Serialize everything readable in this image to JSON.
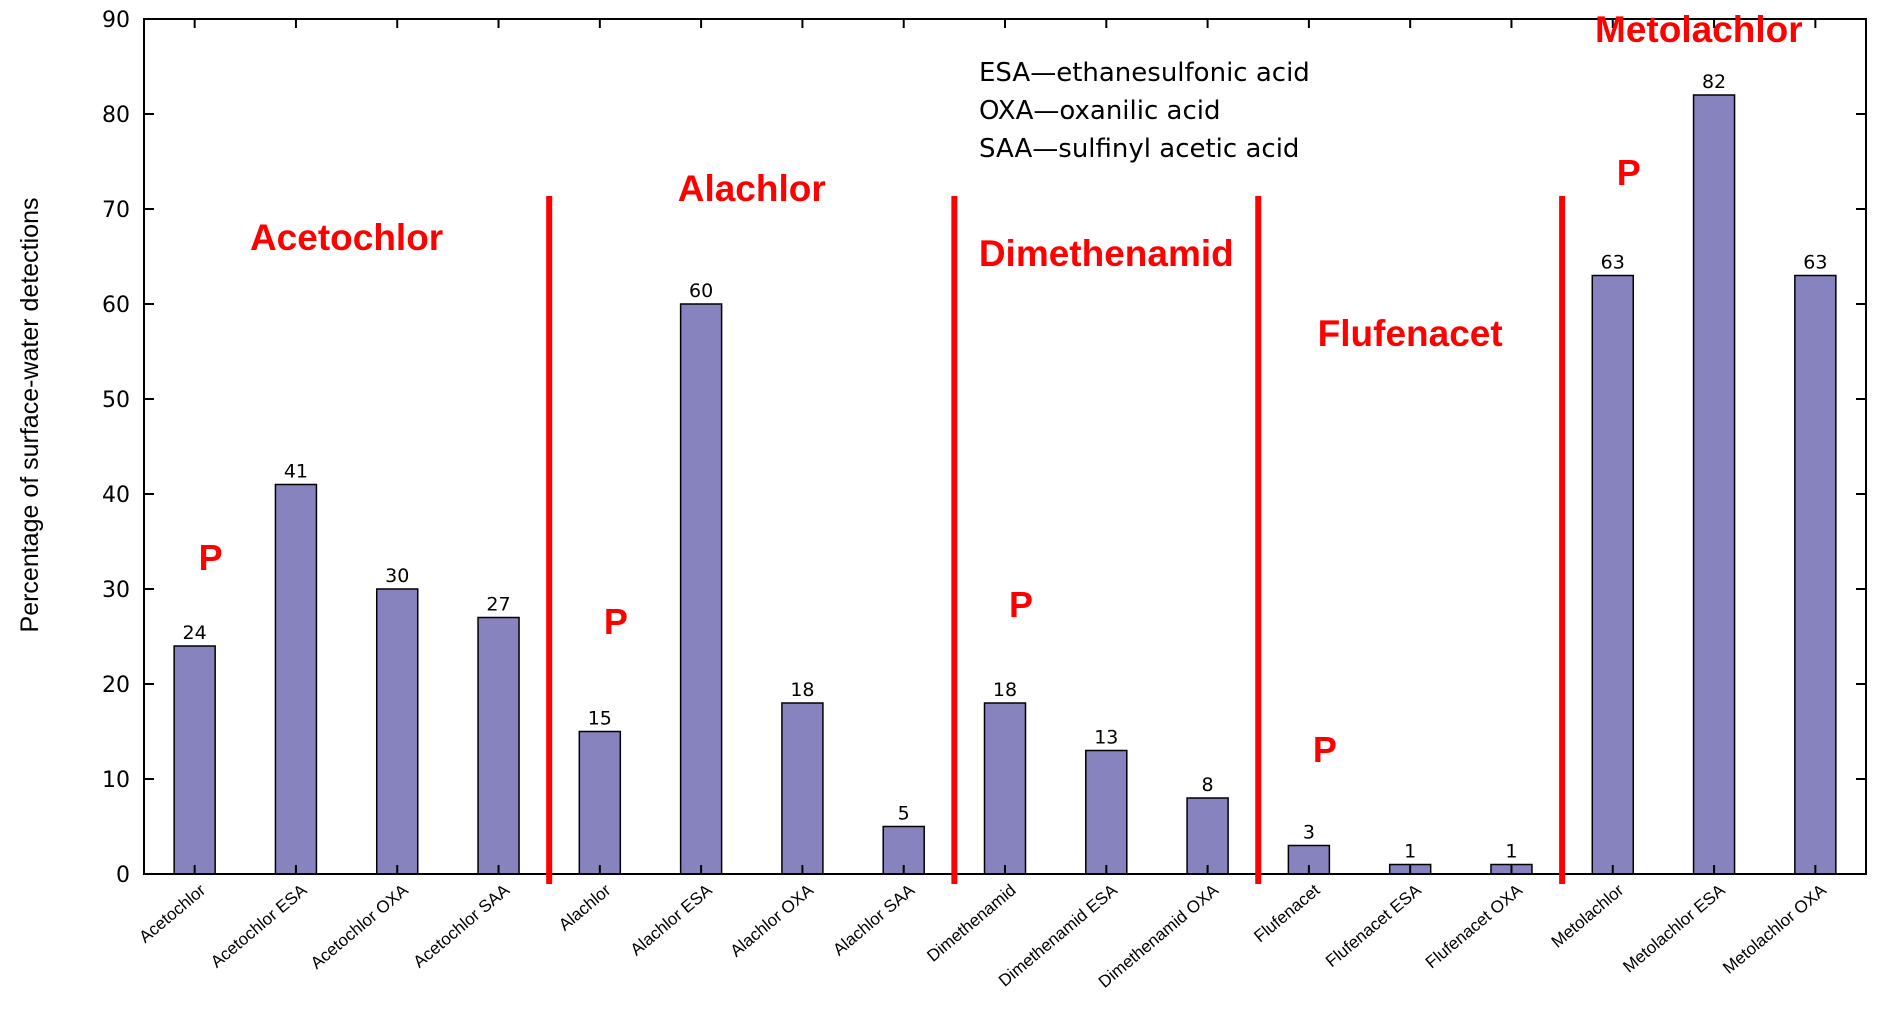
{
  "chart_data": {
    "type": "bar",
    "ylabel": "Percentage of surface-water detections",
    "xlabel": "",
    "ylim": [
      0,
      90
    ],
    "yticks": [
      0,
      10,
      20,
      30,
      40,
      50,
      60,
      70,
      80,
      90
    ],
    "grid": false,
    "categories": [
      "Acetochlor",
      "Acetochlor ESA",
      "Acetochlor OXA",
      "Acetochlor SAA",
      "Alachlor",
      "Alachlor ESA",
      "Alachlor OXA",
      "Alachlor SAA",
      "Dimethenamid",
      "Dimethenamid ESA",
      "Dimethenamid OXA",
      "Flufenacet",
      "Flufenacet ESA",
      "Flufenacet OXA",
      "Metolachlor",
      "Metolachlor ESA",
      "Metolachlor OXA"
    ],
    "values": [
      24,
      41,
      30,
      27,
      15,
      60,
      18,
      5,
      18,
      13,
      8,
      3,
      1,
      1,
      63,
      82,
      63
    ],
    "bar_color": "#8683be",
    "bar_edge_color": "#000000",
    "legend": [
      "ESA—ethanesulfonic acid",
      "OXA—oxanilic acid",
      "SAA—sulfinyl acetic acid"
    ],
    "legend_position": "top-right",
    "group_color": "#ff0000",
    "groups": [
      {
        "name": "Acetochlor",
        "first_category": 0,
        "last_category": 3,
        "marker": "P",
        "marker_category": 0
      },
      {
        "name": "Alachlor",
        "first_category": 4,
        "last_category": 7,
        "marker": "P",
        "marker_category": 4
      },
      {
        "name": "Dimethenamid",
        "first_category": 8,
        "last_category": 10,
        "marker": "P",
        "marker_category": 8
      },
      {
        "name": "Flufenacet",
        "first_category": 11,
        "last_category": 13,
        "marker": "P",
        "marker_category": 11
      },
      {
        "name": "Metolachlor",
        "first_category": 14,
        "last_category": 16,
        "marker": "P",
        "marker_category": 14
      }
    ]
  }
}
